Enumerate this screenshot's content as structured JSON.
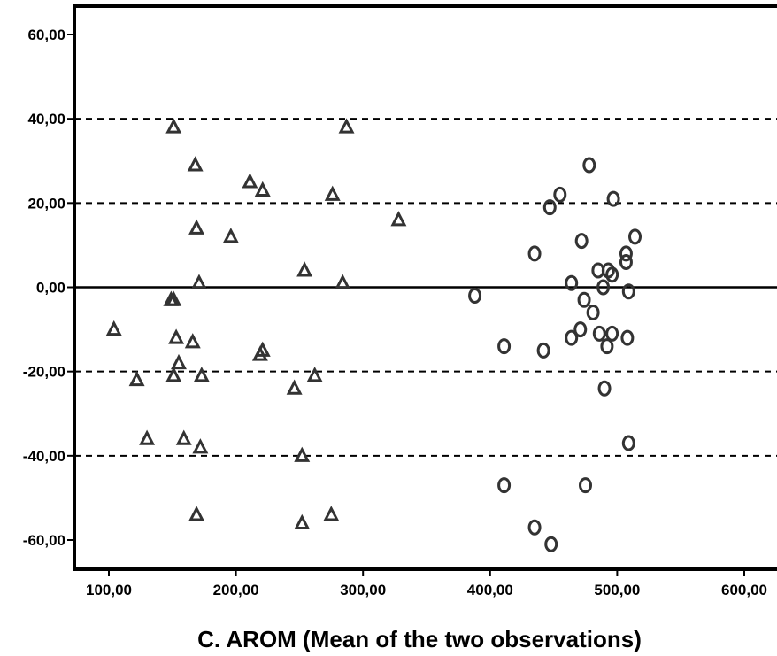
{
  "chart_data": {
    "type": "scatter",
    "title": "",
    "xlabel": "C. AROM (Mean of the two observations)",
    "ylabel": "",
    "xlim": [
      75,
      630
    ],
    "ylim": [
      -68,
      67
    ],
    "x_ticks": [
      100,
      200,
      300,
      400,
      500,
      600
    ],
    "x_tick_labels": [
      "100,00",
      "200,00",
      "300,00",
      "400,00",
      "500,00",
      "600,00"
    ],
    "y_ticks": [
      60,
      40,
      20,
      0,
      -20,
      -40,
      -60
    ],
    "y_tick_labels": [
      "60,00",
      "40,00",
      "20,00",
      "0,00",
      "-20,00",
      "-40,00",
      "-60,00"
    ],
    "reference_lines": [
      {
        "y": 40,
        "style": "dashed"
      },
      {
        "y": 20,
        "style": "dashed"
      },
      {
        "y": 0,
        "style": "solid"
      },
      {
        "y": -20,
        "style": "dashed"
      },
      {
        "y": -40,
        "style": "dashed"
      }
    ],
    "grid": false,
    "series": [
      {
        "marker": "triangle",
        "color": "#333333",
        "points": [
          [
            151,
            38
          ],
          [
            168,
            29
          ],
          [
            211,
            25
          ],
          [
            221,
            23
          ],
          [
            276,
            22
          ],
          [
            287,
            38
          ],
          [
            328,
            16
          ],
          [
            169,
            14
          ],
          [
            196,
            12
          ],
          [
            254,
            4
          ],
          [
            171,
            1
          ],
          [
            284,
            1
          ],
          [
            149,
            -3
          ],
          [
            151,
            -3
          ],
          [
            104,
            -10
          ],
          [
            153,
            -12
          ],
          [
            166,
            -13
          ],
          [
            221,
            -15
          ],
          [
            219,
            -16
          ],
          [
            155,
            -18
          ],
          [
            151,
            -21
          ],
          [
            173,
            -21
          ],
          [
            122,
            -22
          ],
          [
            262,
            -21
          ],
          [
            246,
            -24
          ],
          [
            130,
            -36
          ],
          [
            159,
            -36
          ],
          [
            172,
            -38
          ],
          [
            252,
            -40
          ],
          [
            169,
            -54
          ],
          [
            275,
            -54
          ],
          [
            252,
            -56
          ]
        ]
      },
      {
        "marker": "circle",
        "color": "#333333",
        "points": [
          [
            478,
            29
          ],
          [
            455,
            22
          ],
          [
            497,
            21
          ],
          [
            447,
            19
          ],
          [
            514,
            12
          ],
          [
            472,
            11
          ],
          [
            435,
            8
          ],
          [
            507,
            8
          ],
          [
            485,
            4
          ],
          [
            493,
            4
          ],
          [
            496,
            3
          ],
          [
            507,
            6
          ],
          [
            464,
            1
          ],
          [
            489,
            0
          ],
          [
            509,
            -1
          ],
          [
            388,
            -2
          ],
          [
            474,
            -3
          ],
          [
            481,
            -6
          ],
          [
            471,
            -10
          ],
          [
            486,
            -11
          ],
          [
            496,
            -11
          ],
          [
            464,
            -12
          ],
          [
            508,
            -12
          ],
          [
            411,
            -14
          ],
          [
            492,
            -14
          ],
          [
            442,
            -15
          ],
          [
            490,
            -24
          ],
          [
            509,
            -37
          ],
          [
            411,
            -47
          ],
          [
            475,
            -47
          ],
          [
            435,
            -57
          ],
          [
            448,
            -61
          ]
        ]
      }
    ]
  }
}
